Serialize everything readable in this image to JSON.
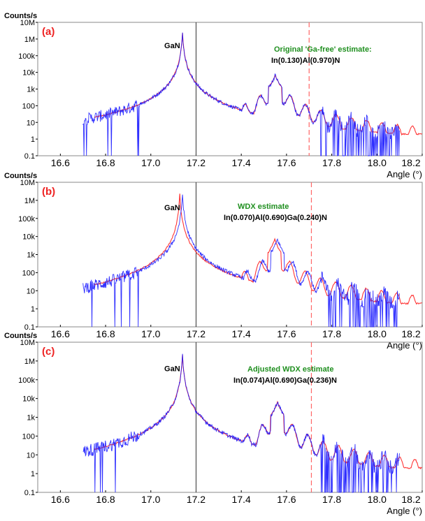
{
  "colors": {
    "simulation": "#ff2a2a",
    "measured": "#1a1aff",
    "annotation_title": "#1f8f1f",
    "panel_label": "#ee2222",
    "vertical_solid": "#333333",
    "vertical_dashed": "#ff6666"
  },
  "chart_data": [
    {
      "type": "line",
      "panel_label": "(a)",
      "ylabel": "Counts/s",
      "xlabel": "Angle (°)",
      "yscale": "log",
      "ylim": [
        0.1,
        10000000
      ],
      "xlim": [
        16.5,
        18.2
      ],
      "yticks": [
        "0.1",
        "1",
        "10",
        "100",
        "1k",
        "10k",
        "100k",
        "1M",
        "10M"
      ],
      "xticks": [
        "16.6",
        "16.8",
        "17.0",
        "17.2",
        "17.4",
        "17.6",
        "17.8",
        "18.0",
        "18.2"
      ],
      "peak_label": "GaN",
      "gan_peak_angle": 17.14,
      "layer_peak_angle": 17.55,
      "layer_peak_counts": 7000,
      "solid_line_x": 17.2,
      "dashed_line_x": 17.7,
      "annotation_title": "Original 'Ga-free' estimate:",
      "annotation_formula": "In(0.130)Al(0.970)N",
      "series": [
        {
          "key": "simulation",
          "color": "#ff2a2a",
          "x_range": [
            16.75,
            18.2
          ]
        },
        {
          "key": "measured",
          "color": "#1a1aff",
          "x_range": [
            16.7,
            18.1
          ]
        }
      ]
    },
    {
      "type": "line",
      "panel_label": "(b)",
      "ylabel": "Counts/s",
      "xlabel": "Angle (°)",
      "yscale": "log",
      "ylim": [
        0.1,
        10000000
      ],
      "xlim": [
        16.5,
        18.2
      ],
      "yticks": [
        "0.1",
        "1",
        "10",
        "100",
        "1k",
        "10k",
        "100k",
        "1M",
        "10M"
      ],
      "xticks": [
        "16.6",
        "16.8",
        "17.0",
        "17.2",
        "17.4",
        "17.6",
        "17.8",
        "18.0",
        "18.2"
      ],
      "peak_label": "GaN",
      "gan_peak_angle": 17.14,
      "layer_peak_angle": 17.56,
      "layer_peak_counts": 7000,
      "solid_line_x": 17.2,
      "dashed_line_x": 17.71,
      "annotation_title": "WDX estimate",
      "annotation_formula": "In(0.070)Al(0.690)Ga(0.240)N",
      "series": [
        {
          "key": "simulation",
          "color": "#ff2a2a",
          "x_range": [
            16.75,
            18.2
          ]
        },
        {
          "key": "measured",
          "color": "#1a1aff",
          "x_range": [
            16.7,
            18.1
          ]
        }
      ]
    },
    {
      "type": "line",
      "panel_label": "(c)",
      "ylabel": "Counts/s",
      "xlabel": "Angle (°)",
      "yscale": "log",
      "ylim": [
        0.1,
        10000000
      ],
      "xlim": [
        16.5,
        18.2
      ],
      "yticks": [
        "0.1",
        "1",
        "10",
        "100",
        "1k",
        "10k",
        "100k",
        "1M",
        "10M"
      ],
      "xticks": [
        "16.6",
        "16.8",
        "17.0",
        "17.2",
        "17.4",
        "17.6",
        "17.8",
        "18.0",
        "18.2"
      ],
      "peak_label": "GaN",
      "gan_peak_angle": 17.14,
      "layer_peak_angle": 17.56,
      "layer_peak_counts": 7000,
      "solid_line_x": 17.2,
      "dashed_line_x": 17.71,
      "annotation_title": "Adjusted WDX estimate",
      "annotation_formula": "In(0.074)Al(0.690)Ga(0.236)N",
      "series": [
        {
          "key": "simulation",
          "color": "#ff2a2a",
          "x_range": [
            16.75,
            18.2
          ]
        },
        {
          "key": "measured",
          "color": "#1a1aff",
          "x_range": [
            16.7,
            18.1
          ]
        }
      ]
    }
  ]
}
